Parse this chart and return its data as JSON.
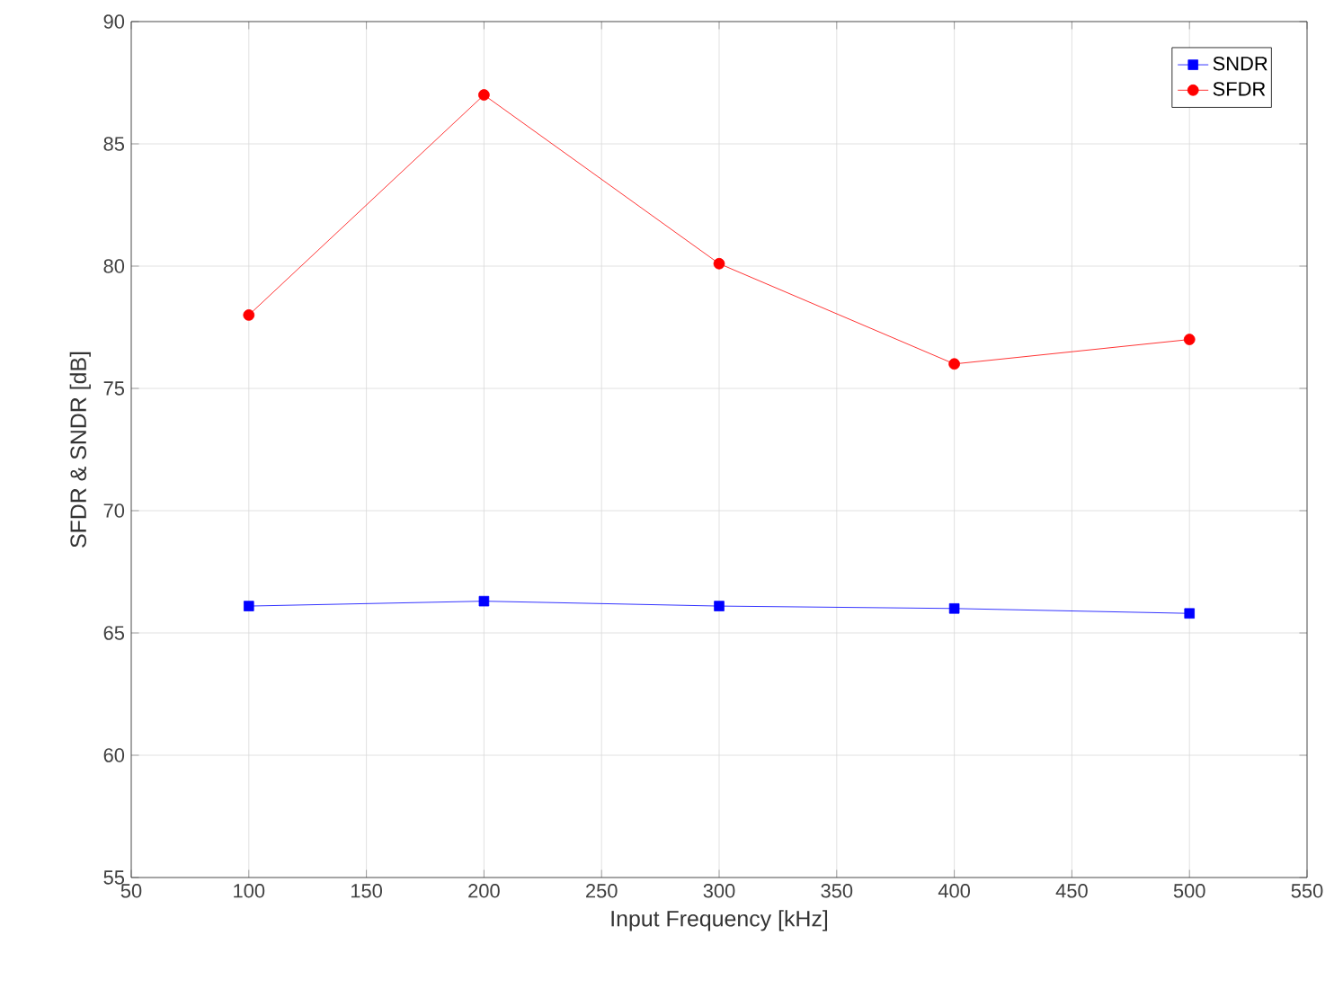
{
  "chart_data": {
    "type": "line",
    "xlabel": "Input Frequency [kHz]",
    "ylabel": "SFDR & SNDR [dB]",
    "x": [
      100,
      200,
      300,
      400,
      500
    ],
    "series": [
      {
        "name": "SNDR",
        "color": "#0000ff",
        "marker": "square",
        "values": [
          66.1,
          66.3,
          66.1,
          66.0,
          65.8
        ]
      },
      {
        "name": "SFDR",
        "color": "#ff0000",
        "marker": "circle",
        "values": [
          78,
          87,
          80.1,
          76,
          77
        ]
      }
    ],
    "xlim": [
      50,
      550
    ],
    "xticks": [
      50,
      100,
      150,
      200,
      250,
      300,
      350,
      400,
      450,
      500,
      550
    ],
    "ylim": [
      55,
      90
    ],
    "yticks": [
      55,
      60,
      65,
      70,
      75,
      80,
      85,
      90
    ],
    "grid": true,
    "legend": "top right",
    "line_style": "solid"
  }
}
